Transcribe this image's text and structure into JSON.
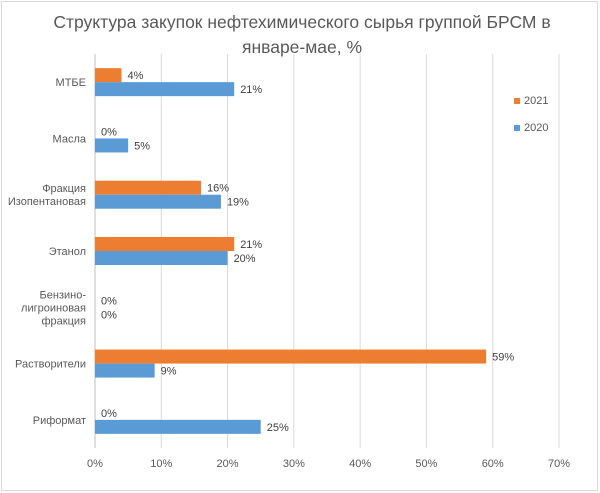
{
  "chart_data": {
    "type": "bar",
    "orientation": "horizontal",
    "title": "Структура закупок нефтехимического сырья группой БРСМ в январе-мае, %",
    "categories": [
      [
        "МТБЕ"
      ],
      [
        "Масла"
      ],
      [
        "Фракция",
        "Изопентановая"
      ],
      [
        "Этанол"
      ],
      [
        "Бензино-",
        "лигроиновая",
        "фракция"
      ],
      [
        "Растворители"
      ],
      [
        "Риформат"
      ]
    ],
    "series": [
      {
        "name": "2021",
        "color": "#ed7d31",
        "values": [
          4,
          0,
          16,
          21,
          0,
          59,
          0
        ],
        "labels": [
          "4%",
          "0%",
          "16%",
          "21%",
          "0%",
          "59%",
          "0%"
        ]
      },
      {
        "name": "2020",
        "color": "#5b9bd5",
        "values": [
          21,
          5,
          19,
          20,
          0,
          9,
          25
        ],
        "labels": [
          "21%",
          "5%",
          "19%",
          "20%",
          "0%",
          "9%",
          "25%"
        ]
      }
    ],
    "xlim": [
      0,
      70
    ],
    "xticks": [
      "0%",
      "10%",
      "20%",
      "30%",
      "40%",
      "50%",
      "60%",
      "70%"
    ],
    "grid": true,
    "legend_position": "right"
  }
}
